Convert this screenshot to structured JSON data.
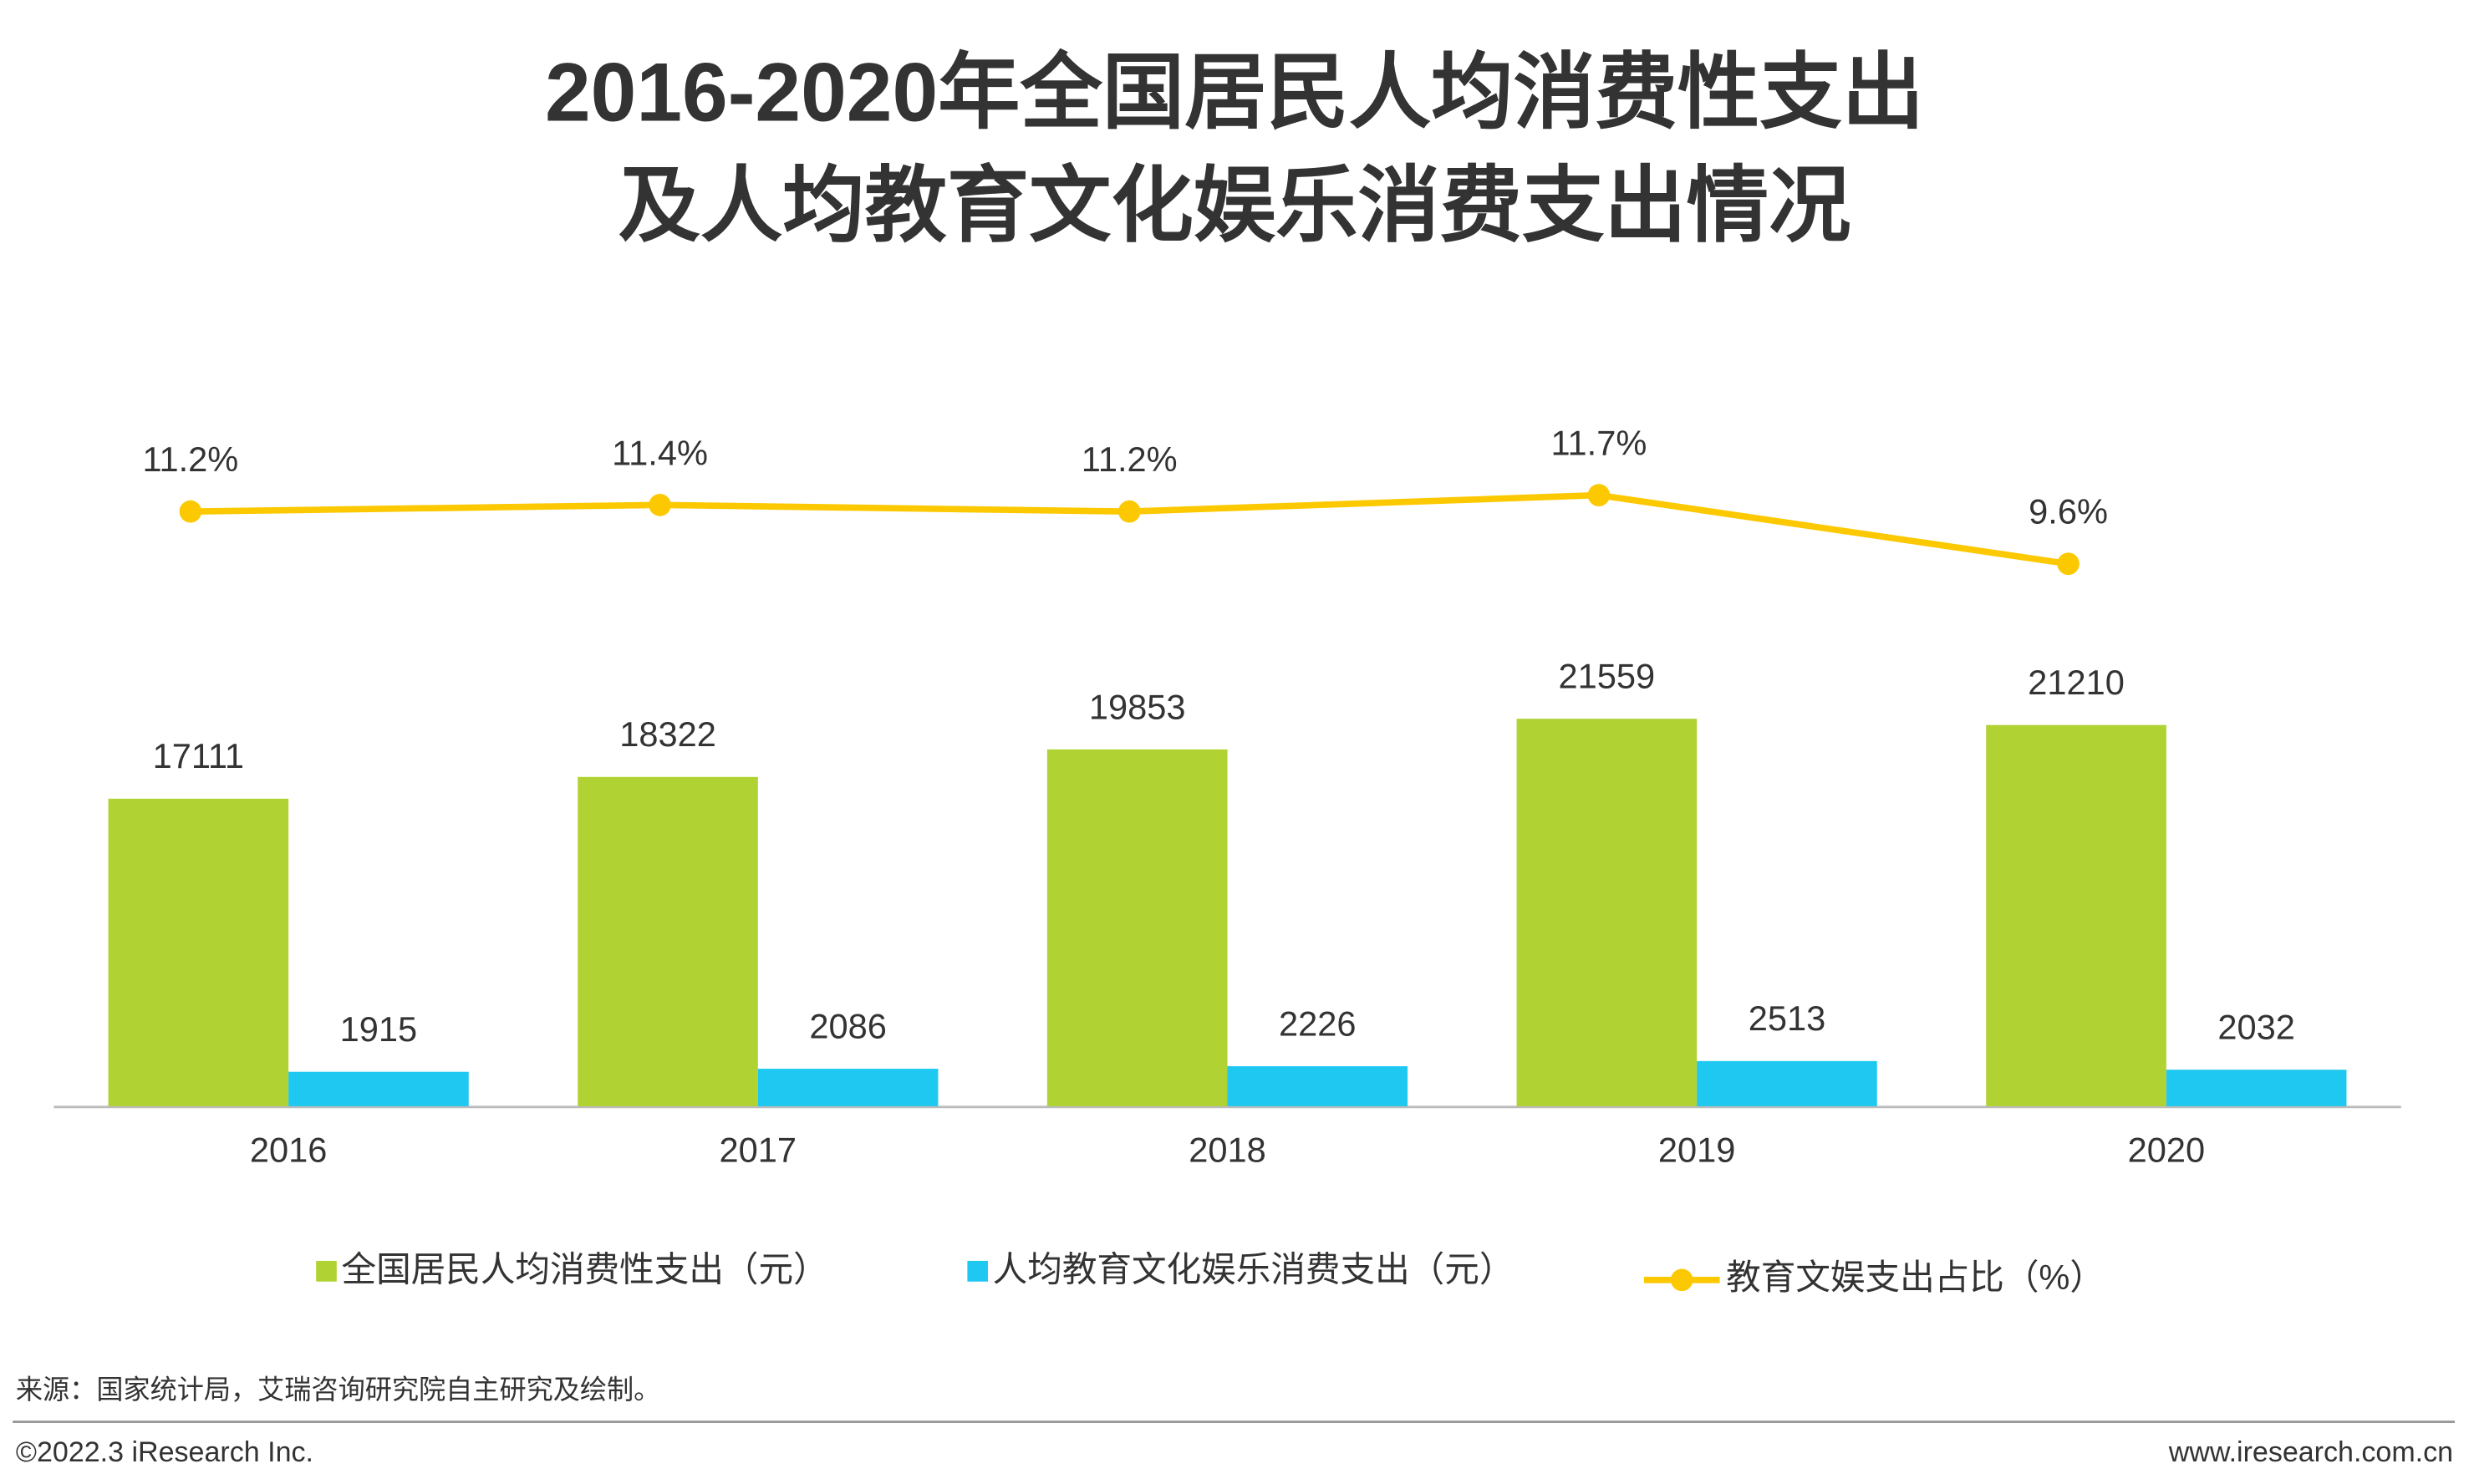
{
  "chart_data": {
    "type": "bar-line",
    "title": [
      "2016-2020年全国居民人均消费性支出",
      "及人均教育文化娱乐消费支出情况"
    ],
    "categories": [
      "2016",
      "2017",
      "2018",
      "2019",
      "2020"
    ],
    "series": [
      {
        "name": "全国居民人均消费性支出（元）",
        "type": "bar",
        "color": "#b0d232",
        "values": [
          17111,
          18322,
          19853,
          21559,
          21210
        ]
      },
      {
        "name": "人均教育文化娱乐消费支出（元）",
        "type": "bar",
        "color": "#1fc8f0",
        "values": [
          1915,
          2086,
          2226,
          2513,
          2032
        ]
      },
      {
        "name": "教育文娱支出占比（%）",
        "type": "line",
        "axis": "y2",
        "color": "#fcc800",
        "values": [
          11.2,
          11.4,
          11.2,
          11.7,
          9.6
        ],
        "value_labels": [
          "11.2%",
          "11.4%",
          "11.2%",
          "11.7%",
          "9.6%"
        ]
      }
    ],
    "ylim": [
      0,
      40000
    ],
    "y2lim": [
      -7,
      15
    ],
    "source": "来源：国家统计局，艾瑞咨询研究院自主研究及绘制。",
    "copyright": "©2022.3 iResearch Inc.",
    "website": "www.iresearch.com.cn"
  }
}
